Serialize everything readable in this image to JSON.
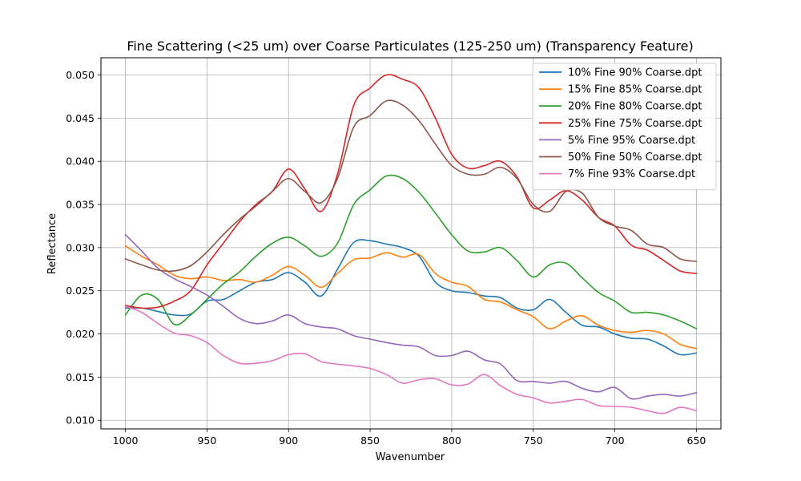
{
  "chart_data": {
    "type": "line",
    "title": "Fine Scattering (<25 um) over Coarse Particulates (125-250 um) (Transparency Feature)",
    "xlabel": "Wavenumber",
    "ylabel": "Reflectance",
    "xlim": [
      1015,
      635
    ],
    "ylim": [
      0.009,
      0.052
    ],
    "x_inverted": true,
    "grid": true,
    "legend_position": "top-right",
    "x_ticks": [
      1000,
      950,
      900,
      850,
      800,
      750,
      700,
      650
    ],
    "y_ticks": [
      0.01,
      0.015,
      0.02,
      0.025,
      0.03,
      0.035,
      0.04,
      0.045,
      0.05
    ],
    "x_tick_labels": [
      "1000",
      "950",
      "900",
      "850",
      "800",
      "750",
      "700",
      "650"
    ],
    "y_tick_labels": [
      "0.010",
      "0.015",
      "0.020",
      "0.025",
      "0.030",
      "0.035",
      "0.040",
      "0.045",
      "0.050"
    ],
    "x": [
      1000,
      990,
      980,
      970,
      960,
      950,
      940,
      930,
      920,
      910,
      900,
      890,
      880,
      870,
      860,
      850,
      840,
      830,
      820,
      810,
      800,
      790,
      780,
      770,
      760,
      750,
      740,
      730,
      720,
      710,
      700,
      690,
      680,
      670,
      660,
      650
    ],
    "series": [
      {
        "name": "10% Fine 90% Coarse.dpt",
        "color": "#1f77b4",
        "values": [
          0.023,
          0.023,
          0.0226,
          0.0222,
          0.0223,
          0.0238,
          0.024,
          0.025,
          0.026,
          0.0263,
          0.0271,
          0.026,
          0.0244,
          0.0275,
          0.0306,
          0.0308,
          0.0304,
          0.03,
          0.029,
          0.026,
          0.025,
          0.0248,
          0.0244,
          0.0242,
          0.023,
          0.0228,
          0.024,
          0.0225,
          0.021,
          0.0208,
          0.02,
          0.0195,
          0.0194,
          0.0186,
          0.0176,
          0.0178
        ]
      },
      {
        "name": "15% Fine 85% Coarse.dpt",
        "color": "#ff7f0e",
        "values": [
          0.0302,
          0.029,
          0.028,
          0.0268,
          0.0264,
          0.0266,
          0.0262,
          0.0263,
          0.026,
          0.0268,
          0.0278,
          0.0268,
          0.0254,
          0.027,
          0.0286,
          0.0288,
          0.0294,
          0.0289,
          0.0292,
          0.027,
          0.026,
          0.0255,
          0.024,
          0.0237,
          0.0228,
          0.022,
          0.0206,
          0.0215,
          0.0221,
          0.021,
          0.0204,
          0.0202,
          0.0204,
          0.02,
          0.0188,
          0.0183
        ]
      },
      {
        "name": "20% Fine 80% Coarse.dpt",
        "color": "#2ca02c",
        "values": [
          0.0222,
          0.0245,
          0.024,
          0.0211,
          0.0222,
          0.024,
          0.0258,
          0.0272,
          0.029,
          0.0305,
          0.0312,
          0.0302,
          0.029,
          0.0305,
          0.035,
          0.0367,
          0.0383,
          0.038,
          0.0364,
          0.034,
          0.0315,
          0.0296,
          0.0295,
          0.03,
          0.0285,
          0.0266,
          0.028,
          0.0282,
          0.0265,
          0.0248,
          0.0238,
          0.0225,
          0.0225,
          0.0222,
          0.0215,
          0.0206
        ]
      },
      {
        "name": "25% Fine 75% Coarse.dpt",
        "color": "#d62728",
        "values": [
          0.0233,
          0.023,
          0.0231,
          0.0238,
          0.025,
          0.028,
          0.0305,
          0.033,
          0.035,
          0.0365,
          0.0391,
          0.0368,
          0.0342,
          0.0385,
          0.0465,
          0.0485,
          0.05,
          0.0495,
          0.0485,
          0.045,
          0.0408,
          0.0392,
          0.0395,
          0.04,
          0.0382,
          0.0346,
          0.0355,
          0.0366,
          0.0355,
          0.0335,
          0.0325,
          0.0303,
          0.0297,
          0.0285,
          0.0273,
          0.027
        ]
      },
      {
        "name": "5% Fine 95% Coarse.dpt",
        "color": "#9467bd",
        "values": [
          0.0315,
          0.0296,
          0.0276,
          0.0264,
          0.0255,
          0.0245,
          0.0232,
          0.0218,
          0.0212,
          0.0215,
          0.0222,
          0.0212,
          0.0208,
          0.0206,
          0.0198,
          0.0194,
          0.019,
          0.0187,
          0.0185,
          0.0175,
          0.0175,
          0.018,
          0.017,
          0.0165,
          0.0146,
          0.0145,
          0.0143,
          0.0145,
          0.0137,
          0.0133,
          0.0138,
          0.0125,
          0.0128,
          0.013,
          0.0128,
          0.0132
        ]
      },
      {
        "name": "50% Fine 50% Coarse.dpt",
        "color": "#8c564b",
        "values": [
          0.0287,
          0.028,
          0.0274,
          0.0273,
          0.0279,
          0.0295,
          0.0315,
          0.0333,
          0.0348,
          0.0365,
          0.038,
          0.0365,
          0.0352,
          0.038,
          0.044,
          0.0453,
          0.047,
          0.0465,
          0.0447,
          0.042,
          0.0395,
          0.0385,
          0.0385,
          0.0393,
          0.038,
          0.035,
          0.0342,
          0.0365,
          0.0363,
          0.0335,
          0.0325,
          0.032,
          0.0304,
          0.03,
          0.0287,
          0.0284
        ]
      },
      {
        "name": "7% Fine 93% Coarse.dpt",
        "color": "#e377c2",
        "values": [
          0.0232,
          0.0225,
          0.0212,
          0.0201,
          0.0198,
          0.019,
          0.0175,
          0.0166,
          0.0166,
          0.0169,
          0.0176,
          0.0177,
          0.0168,
          0.0165,
          0.0163,
          0.016,
          0.0153,
          0.0143,
          0.0147,
          0.0148,
          0.0141,
          0.0142,
          0.0153,
          0.014,
          0.013,
          0.0126,
          0.012,
          0.0122,
          0.0124,
          0.0117,
          0.0116,
          0.0115,
          0.0111,
          0.0108,
          0.0115,
          0.0111
        ]
      }
    ]
  }
}
